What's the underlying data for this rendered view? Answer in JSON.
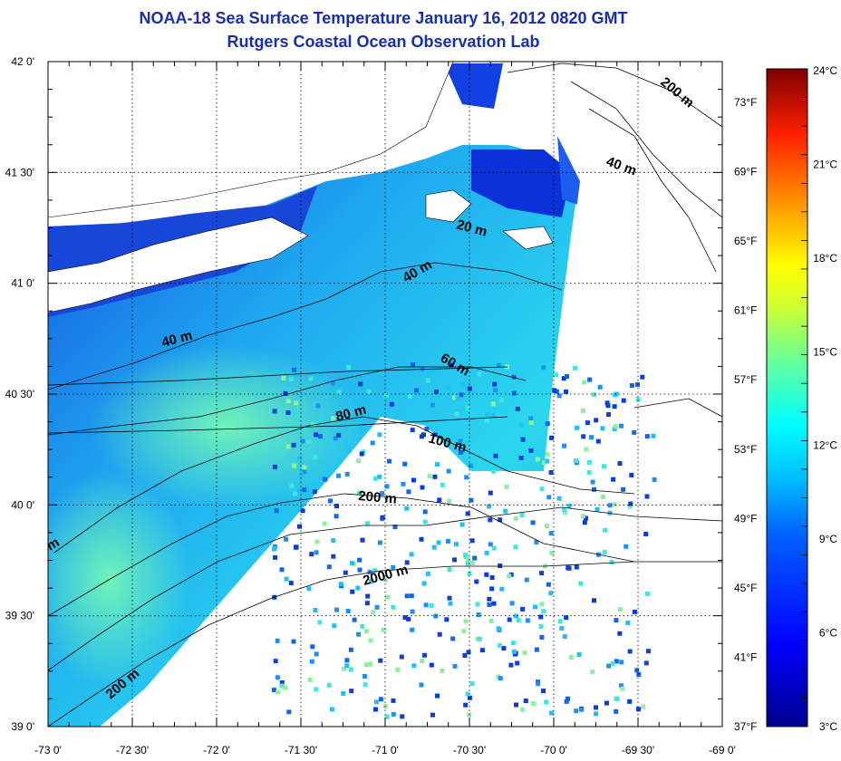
{
  "title": {
    "line1": "NOAA-18 Sea Surface Temperature January 16, 2012 0820 GMT",
    "line2": "Rutgers Coastal Ocean Observation Lab"
  },
  "map": {
    "lon_range": [
      -73.0,
      -69.0
    ],
    "lat_range": [
      39.0,
      42.0
    ],
    "lon_ticks": [
      "-73 0'",
      "-72 30'",
      "-72 0'",
      "-71 30'",
      "-71 0'",
      "-70 30'",
      "-70 0'",
      "-69 30'",
      "-69 0'"
    ],
    "lat_ticks": [
      "42 0'",
      "41 30'",
      "41 0'",
      "40 30'",
      "40 0'",
      "39 30'",
      "39 0'"
    ],
    "fahrenheit_ticks": [
      "73°F",
      "69°F",
      "65°F",
      "61°F",
      "57°F",
      "53°F",
      "49°F",
      "45°F",
      "41°F",
      "37°F"
    ],
    "contour_labels": [
      "200 m",
      "40 m",
      "20 m",
      "40 m",
      "40 m",
      "60 m",
      "80 m",
      "100 m",
      "200 m",
      "2000 m",
      "200 m",
      "m"
    ]
  },
  "colorbar": {
    "labels": [
      "24°C",
      "21°C",
      "18°C",
      "15°C",
      "12°C",
      "9°C",
      "6°C",
      "3°C"
    ],
    "colors": [
      "#7f0000",
      "#ff0000",
      "#ff8000",
      "#ffff00",
      "#80ff80",
      "#00ffff",
      "#0080ff",
      "#0000ff",
      "#00008f"
    ]
  }
}
